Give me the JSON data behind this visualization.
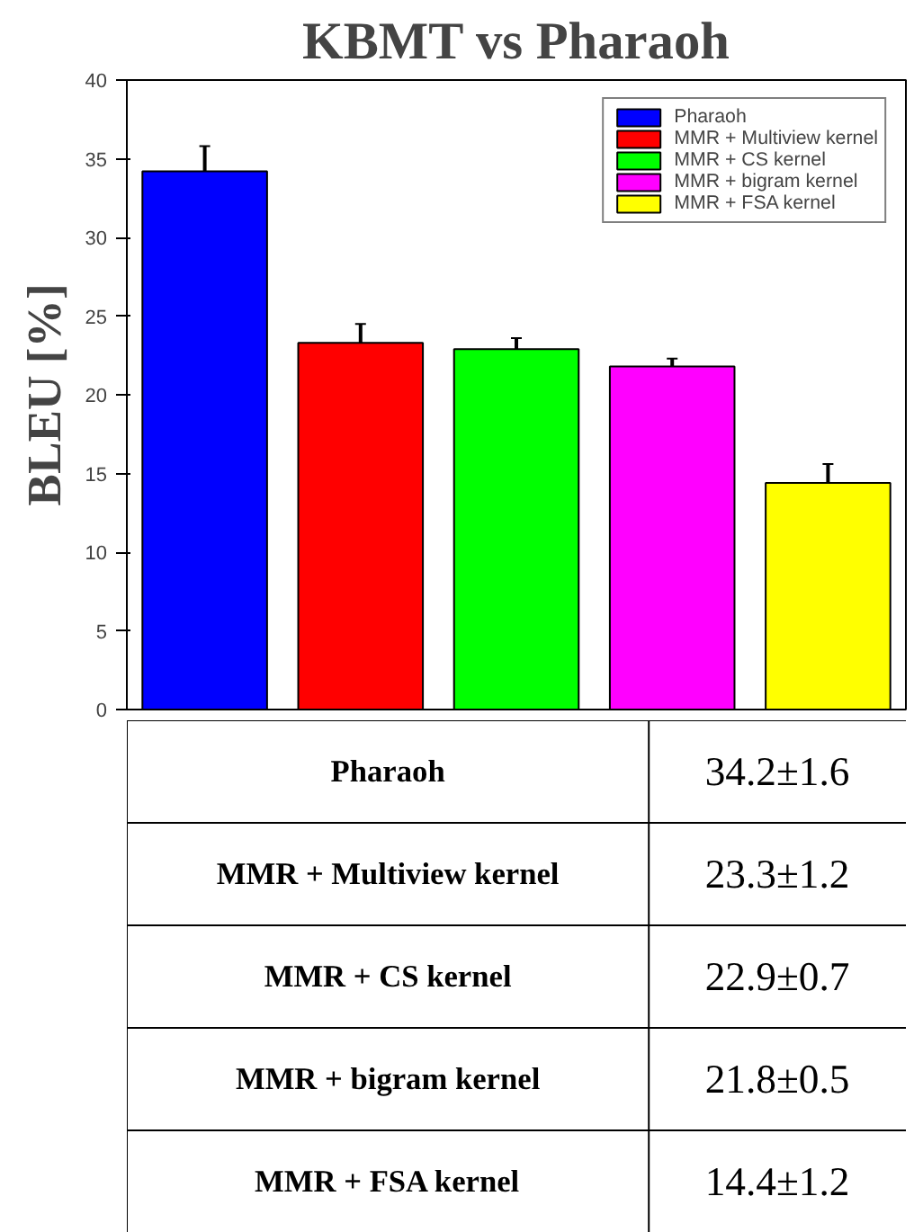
{
  "chart_data": {
    "type": "bar",
    "title": "KBMT vs Pharaoh",
    "ylabel": "BLEU [%]",
    "categories": [
      null
    ],
    "series": [
      {
        "name": "Pharaoh",
        "color": "#0000ff",
        "values": [
          34.2
        ],
        "errors": [
          1.6
        ]
      },
      {
        "name": "MMR + Multiview kernel",
        "color": "#ff0000",
        "values": [
          23.3
        ],
        "errors": [
          1.2
        ]
      },
      {
        "name": "MMR + CS kernel",
        "color": "#00ff00",
        "values": [
          22.9
        ],
        "errors": [
          0.7
        ]
      },
      {
        "name": "MMR + bigram kernel",
        "color": "#ff00ff",
        "values": [
          21.8
        ],
        "errors": [
          0.5
        ]
      },
      {
        "name": "MMR + FSA kernel",
        "color": "#ffff00",
        "values": [
          14.4
        ],
        "errors": [
          1.2
        ]
      }
    ],
    "ylim": [
      0,
      40
    ],
    "yticks": [
      0,
      5,
      10,
      15,
      20,
      25,
      30,
      35,
      40
    ],
    "grid": false,
    "legend": "top right",
    "tick_labels": "y",
    "annotations": [
      "Pharaoh",
      "34.2±1.6",
      "MMR + Multiview kernel",
      "23.3±1.2",
      "MMR + CS kernel",
      "22.9±0.7",
      "MMR + bigram kernel",
      "21.8±0.5",
      "MMR + FSA kernel",
      "14.4±1.2"
    ]
  }
}
